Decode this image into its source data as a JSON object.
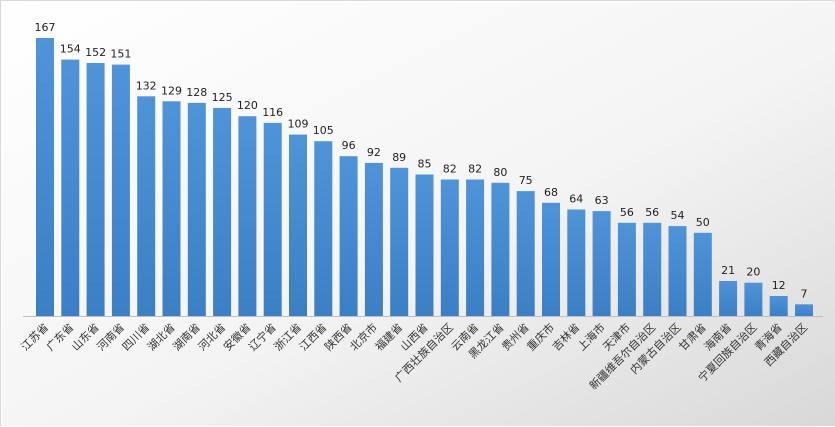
{
  "chart_data": {
    "type": "bar",
    "title": "",
    "xlabel": "",
    "ylabel": "",
    "ylim": [
      0,
      175
    ],
    "grid": false,
    "legend": "none",
    "data_labels": true,
    "bar_color": "#4f93d8",
    "bar_color_dark": "#3b7fc4",
    "categories": [
      "江苏省",
      "广东省",
      "山东省",
      "河南省",
      "四川省",
      "湖北省",
      "湖南省",
      "河北省",
      "安徽省",
      "辽宁省",
      "浙江省",
      "江西省",
      "陕西省",
      "北京市",
      "福建省",
      "山西省",
      "广西壮族自治区",
      "云南省",
      "黑龙江省",
      "贵州省",
      "重庆市",
      "吉林省",
      "上海市",
      "天津市",
      "新疆维吾尔自治区",
      "内蒙古自治区",
      "甘肃省",
      "海南省",
      "宁夏回族自治区",
      "青海省",
      "西藏自治区"
    ],
    "values": [
      167,
      154,
      152,
      151,
      132,
      129,
      128,
      125,
      120,
      116,
      109,
      105,
      96,
      92,
      89,
      85,
      82,
      82,
      80,
      75,
      68,
      64,
      63,
      56,
      56,
      54,
      50,
      21,
      20,
      12,
      7
    ]
  }
}
